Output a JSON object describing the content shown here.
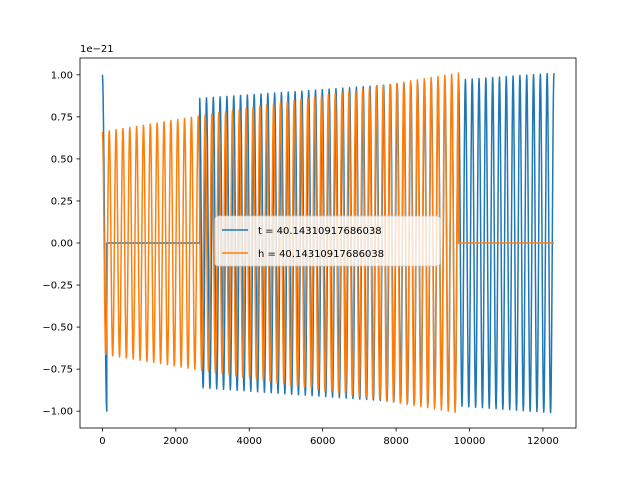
{
  "chart_data": {
    "type": "line",
    "x_ticks": [
      0,
      2000,
      4000,
      6000,
      8000,
      10000,
      12000
    ],
    "x_tick_labels": [
      "0",
      "2000",
      "4000",
      "6000",
      "8000",
      "10000",
      "12000"
    ],
    "y_ticks": [
      -1.0,
      -0.75,
      -0.5,
      -0.25,
      0.0,
      0.25,
      0.5,
      0.75,
      1.0
    ],
    "y_tick_labels": [
      "−1.00",
      "−0.75",
      "−0.50",
      "−0.25",
      "0.00",
      "0.25",
      "0.50",
      "0.75",
      "1.00"
    ],
    "y_offset_label": "1e−21",
    "xlim": [
      -610,
      12900
    ],
    "ylim": [
      -1.1,
      1.1
    ],
    "legend_placement": "center",
    "grid": false,
    "series": [
      {
        "name": "t = 40.14310917686038",
        "color": "#1f77b4",
        "segments": [
          {
            "x_start": 0,
            "x_end": 120,
            "amp_start": 1.0,
            "amp_end": 1.0,
            "cycles": 0.5
          },
          {
            "x_start": 120,
            "x_end": 2650,
            "constant": 0.0
          },
          {
            "x_start": 2650,
            "x_end": 12300,
            "amp_start": 0.86,
            "amp_end": 1.01,
            "cycles": 52
          }
        ]
      },
      {
        "name": "h = 40.14310917686038",
        "color": "#ff7f0e",
        "segments": [
          {
            "x_start": 0,
            "x_end": 9700,
            "amp_start": 0.66,
            "amp_end": 1.01,
            "cycles": 52
          },
          {
            "x_start": 9700,
            "x_end": 12300,
            "constant": 0.0
          }
        ]
      }
    ]
  }
}
